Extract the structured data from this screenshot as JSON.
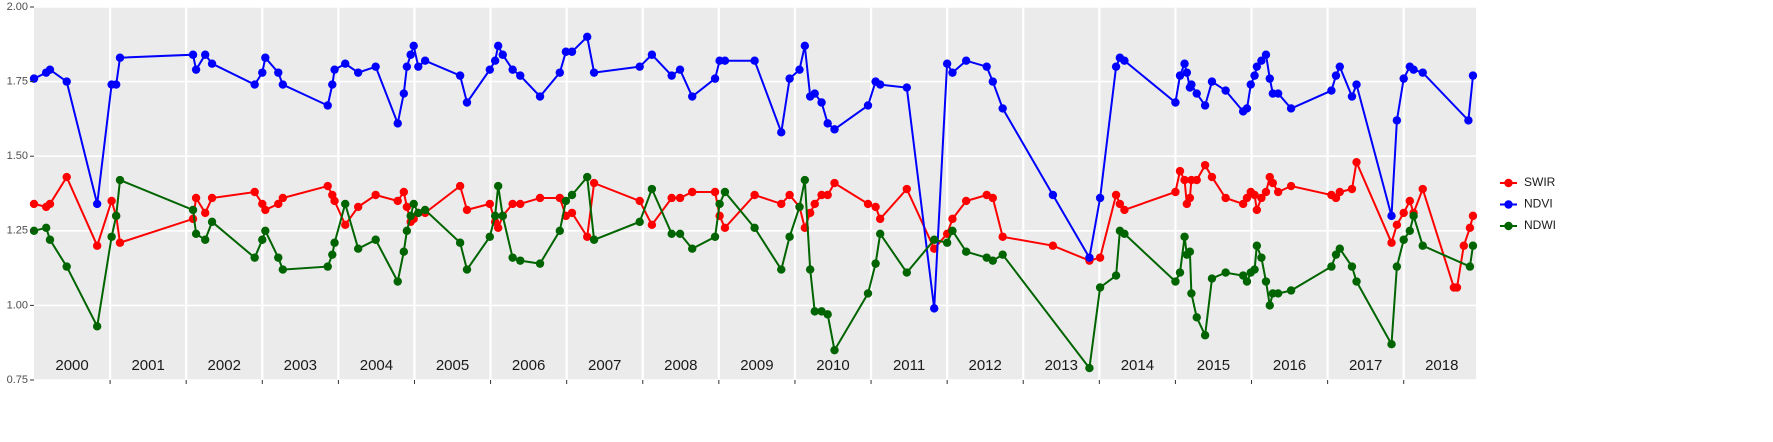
{
  "chart_data": {
    "type": "line",
    "xlim": [
      2000,
      2018.95
    ],
    "ylim": [
      0.75,
      2.0
    ],
    "yticks": [
      0.75,
      {
        "value": 1.0,
        "label": "1.00"
      },
      1.25,
      {
        "value": 1.5,
        "label": "1.50"
      },
      1.75,
      {
        "value": 2.0,
        "label": "2.00"
      }
    ],
    "xticks": [
      {
        "value": 2000.5,
        "label": "2000"
      },
      {
        "value": 2001.5,
        "label": "2001"
      },
      {
        "value": 2002.5,
        "label": "2002"
      },
      {
        "value": 2003.5,
        "label": "2003"
      },
      {
        "value": 2004.5,
        "label": "2004"
      },
      {
        "value": 2005.5,
        "label": "2005"
      },
      {
        "value": 2006.5,
        "label": "2006"
      },
      {
        "value": 2007.5,
        "label": "2007"
      },
      {
        "value": 2008.5,
        "label": "2008"
      },
      {
        "value": 2009.5,
        "label": "2009"
      },
      {
        "value": 2010.5,
        "label": "2010"
      },
      {
        "value": 2011.5,
        "label": "2011"
      },
      {
        "value": 2012.5,
        "label": "2012"
      },
      {
        "value": 2013.5,
        "label": "2013"
      },
      {
        "value": 2014.5,
        "label": "2014"
      },
      {
        "value": 2015.5,
        "label": "2015"
      },
      {
        "value": 2016.5,
        "label": "2016"
      },
      {
        "value": 2017.5,
        "label": "2017"
      },
      {
        "value": 2018.5,
        "label": "2018"
      }
    ],
    "xbreaks": [
      2001,
      2002,
      2003,
      2004,
      2005,
      2006,
      2007,
      2008,
      2009,
      2010,
      2011,
      2012,
      2013,
      2014,
      2015,
      2016,
      2017,
      2018
    ],
    "grid": true,
    "legend": "right",
    "series": [
      {
        "name": "SWIR",
        "color": "#ff0000",
        "x": [
          2000.0,
          2000.16,
          2000.21,
          2000.43,
          2000.83,
          2001.02,
          2001.08,
          2001.13,
          2002.09,
          2002.13,
          2002.25,
          2002.34,
          2002.9,
          2003.0,
          2003.04,
          2003.21,
          2003.27,
          2003.86,
          2003.92,
          2003.95,
          2004.09,
          2004.26,
          2004.49,
          2004.78,
          2004.86,
          2004.9,
          2004.95,
          2004.99,
          2005.05,
          2005.14,
          2005.6,
          2005.69,
          2005.99,
          2006.06,
          2006.1,
          2006.16,
          2006.29,
          2006.39,
          2006.65,
          2006.91,
          2006.99,
          2007.07,
          2007.27,
          2007.36,
          2007.96,
          2008.12,
          2008.38,
          2008.49,
          2008.65,
          2008.95,
          2009.01,
          2009.08,
          2009.47,
          2009.82,
          2009.93,
          2010.06,
          2010.13,
          2010.2,
          2010.26,
          2010.35,
          2010.43,
          2010.52,
          2010.96,
          2011.06,
          2011.12,
          2011.47,
          2011.83,
          2012.0,
          2012.07,
          2012.25,
          2012.52,
          2012.6,
          2012.73,
          2013.39,
          2013.87,
          2014.01,
          2014.22,
          2014.27,
          2014.33,
          2015.0,
          2015.06,
          2015.12,
          2015.15,
          2015.19,
          2015.21,
          2015.28,
          2015.39,
          2015.48,
          2015.66,
          2015.89,
          2015.94,
          2015.99,
          2016.04,
          2016.07,
          2016.13,
          2016.19,
          2016.24,
          2016.28,
          2016.35,
          2016.52,
          2017.05,
          2017.11,
          2017.16,
          2017.32,
          2017.38,
          2017.84,
          2017.91,
          2018.0,
          2018.08,
          2018.13,
          2018.25,
          2018.66,
          2018.7,
          2018.79,
          2018.87,
          2018.91
        ],
        "values": [
          1.34,
          1.33,
          1.34,
          1.43,
          1.2,
          1.35,
          1.3,
          1.21,
          1.29,
          1.36,
          1.31,
          1.36,
          1.38,
          1.34,
          1.32,
          1.34,
          1.36,
          1.4,
          1.37,
          1.35,
          1.27,
          1.33,
          1.37,
          1.35,
          1.38,
          1.33,
          1.28,
          1.29,
          1.31,
          1.31,
          1.4,
          1.32,
          1.34,
          1.28,
          1.26,
          1.3,
          1.34,
          1.34,
          1.36,
          1.36,
          1.3,
          1.31,
          1.23,
          1.41,
          1.35,
          1.27,
          1.36,
          1.36,
          1.38,
          1.38,
          1.3,
          1.26,
          1.37,
          1.34,
          1.37,
          1.33,
          1.26,
          1.31,
          1.34,
          1.37,
          1.37,
          1.41,
          1.34,
          1.33,
          1.29,
          1.39,
          1.19,
          1.24,
          1.29,
          1.35,
          1.37,
          1.36,
          1.23,
          1.2,
          1.15,
          1.16,
          1.37,
          1.34,
          1.32,
          1.38,
          1.45,
          1.42,
          1.34,
          1.36,
          1.42,
          1.42,
          1.47,
          1.43,
          1.36,
          1.34,
          1.36,
          1.38,
          1.37,
          1.32,
          1.36,
          1.38,
          1.43,
          1.41,
          1.38,
          1.4,
          1.37,
          1.36,
          1.38,
          1.39,
          1.48,
          1.21,
          1.27,
          1.31,
          1.35,
          1.31,
          1.39,
          1.06,
          1.06,
          1.2,
          1.26,
          1.3
        ]
      },
      {
        "name": "NDVI",
        "color": "#0000ff",
        "x": [
          2000.0,
          2000.16,
          2000.21,
          2000.43,
          2000.83,
          2001.02,
          2001.08,
          2001.13,
          2002.09,
          2002.13,
          2002.25,
          2002.34,
          2002.9,
          2003.0,
          2003.04,
          2003.21,
          2003.27,
          2003.86,
          2003.92,
          2003.95,
          2004.09,
          2004.26,
          2004.49,
          2004.78,
          2004.86,
          2004.9,
          2004.95,
          2004.99,
          2005.05,
          2005.14,
          2005.6,
          2005.69,
          2005.99,
          2006.06,
          2006.1,
          2006.16,
          2006.29,
          2006.39,
          2006.65,
          2006.91,
          2006.99,
          2007.07,
          2007.27,
          2007.36,
          2007.96,
          2008.12,
          2008.38,
          2008.49,
          2008.65,
          2008.95,
          2009.01,
          2009.08,
          2009.47,
          2009.82,
          2009.93,
          2010.06,
          2010.13,
          2010.2,
          2010.26,
          2010.35,
          2010.43,
          2010.52,
          2010.96,
          2011.06,
          2011.12,
          2011.47,
          2011.83,
          2012.0,
          2012.07,
          2012.25,
          2012.52,
          2012.6,
          2012.73,
          2013.39,
          2013.87,
          2014.01,
          2014.22,
          2014.27,
          2014.33,
          2015.0,
          2015.06,
          2015.12,
          2015.15,
          2015.19,
          2015.21,
          2015.28,
          2015.39,
          2015.48,
          2015.66,
          2015.89,
          2015.94,
          2015.99,
          2016.04,
          2016.07,
          2016.13,
          2016.19,
          2016.24,
          2016.28,
          2016.35,
          2016.52,
          2017.05,
          2017.11,
          2017.16,
          2017.32,
          2017.38,
          2017.84,
          2017.91,
          2018.0,
          2018.08,
          2018.13,
          2018.25,
          2018.85,
          2018.91
        ],
        "values": [
          1.76,
          1.78,
          1.79,
          1.75,
          1.34,
          1.74,
          1.74,
          1.83,
          1.84,
          1.79,
          1.84,
          1.81,
          1.74,
          1.78,
          1.83,
          1.78,
          1.74,
          1.67,
          1.74,
          1.79,
          1.81,
          1.78,
          1.8,
          1.61,
          1.71,
          1.8,
          1.84,
          1.87,
          1.8,
          1.82,
          1.77,
          1.68,
          1.79,
          1.82,
          1.87,
          1.84,
          1.79,
          1.77,
          1.7,
          1.78,
          1.85,
          1.85,
          1.9,
          1.78,
          1.8,
          1.84,
          1.77,
          1.79,
          1.7,
          1.76,
          1.82,
          1.82,
          1.82,
          1.58,
          1.76,
          1.79,
          1.87,
          1.7,
          1.71,
          1.68,
          1.61,
          1.59,
          1.67,
          1.75,
          1.74,
          1.73,
          0.99,
          1.81,
          1.78,
          1.82,
          1.8,
          1.75,
          1.66,
          1.37,
          1.16,
          1.36,
          1.8,
          1.83,
          1.82,
          1.68,
          1.77,
          1.81,
          1.78,
          1.73,
          1.74,
          1.71,
          1.67,
          1.75,
          1.72,
          1.65,
          1.66,
          1.74,
          1.77,
          1.8,
          1.82,
          1.84,
          1.76,
          1.71,
          1.71,
          1.66,
          1.72,
          1.77,
          1.8,
          1.7,
          1.74,
          1.3,
          1.62,
          1.76,
          1.8,
          1.79,
          1.78,
          1.62,
          1.77
        ]
      },
      {
        "name": "NDWI",
        "color": "#006400",
        "x": [
          2000.0,
          2000.16,
          2000.21,
          2000.43,
          2000.83,
          2001.02,
          2001.08,
          2001.13,
          2002.09,
          2002.13,
          2002.25,
          2002.34,
          2002.9,
          2003.0,
          2003.04,
          2003.21,
          2003.27,
          2003.86,
          2003.92,
          2003.95,
          2004.09,
          2004.26,
          2004.49,
          2004.78,
          2004.86,
          2004.9,
          2004.95,
          2004.99,
          2005.05,
          2005.14,
          2005.6,
          2005.69,
          2005.99,
          2006.06,
          2006.1,
          2006.16,
          2006.29,
          2006.39,
          2006.65,
          2006.91,
          2006.99,
          2007.07,
          2007.27,
          2007.36,
          2007.96,
          2008.12,
          2008.38,
          2008.49,
          2008.65,
          2008.95,
          2009.01,
          2009.08,
          2009.47,
          2009.82,
          2009.93,
          2010.06,
          2010.13,
          2010.2,
          2010.26,
          2010.35,
          2010.43,
          2010.52,
          2010.96,
          2011.06,
          2011.12,
          2011.47,
          2011.83,
          2012.0,
          2012.07,
          2012.25,
          2012.52,
          2012.6,
          2012.73,
          2013.87,
          2014.01,
          2014.22,
          2014.27,
          2014.33,
          2015.0,
          2015.06,
          2015.12,
          2015.15,
          2015.19,
          2015.21,
          2015.28,
          2015.39,
          2015.48,
          2015.66,
          2015.89,
          2015.94,
          2015.99,
          2016.04,
          2016.07,
          2016.13,
          2016.19,
          2016.24,
          2016.28,
          2016.35,
          2016.52,
          2017.05,
          2017.11,
          2017.16,
          2017.32,
          2017.38,
          2017.84,
          2017.91,
          2018.0,
          2018.08,
          2018.13,
          2018.25,
          2018.87,
          2018.91
        ],
        "values": [
          1.25,
          1.26,
          1.22,
          1.13,
          0.93,
          1.23,
          1.3,
          1.42,
          1.32,
          1.24,
          1.22,
          1.28,
          1.16,
          1.22,
          1.25,
          1.16,
          1.12,
          1.13,
          1.17,
          1.21,
          1.34,
          1.19,
          1.22,
          1.08,
          1.18,
          1.25,
          1.3,
          1.34,
          1.31,
          1.32,
          1.21,
          1.12,
          1.23,
          1.3,
          1.4,
          1.3,
          1.16,
          1.15,
          1.14,
          1.25,
          1.35,
          1.37,
          1.43,
          1.22,
          1.28,
          1.39,
          1.24,
          1.24,
          1.19,
          1.23,
          1.34,
          1.38,
          1.26,
          1.12,
          1.23,
          1.33,
          1.42,
          1.12,
          0.98,
          0.98,
          0.97,
          0.85,
          1.04,
          1.14,
          1.24,
          1.11,
          1.22,
          1.21,
          1.25,
          1.18,
          1.16,
          1.15,
          1.17,
          0.79,
          1.06,
          1.1,
          1.25,
          1.24,
          1.08,
          1.11,
          1.23,
          1.17,
          1.18,
          1.04,
          0.96,
          0.9,
          1.09,
          1.11,
          1.1,
          1.08,
          1.11,
          1.12,
          1.2,
          1.16,
          1.08,
          1.0,
          1.04,
          1.04,
          1.05,
          1.13,
          1.17,
          1.19,
          1.13,
          1.08,
          0.87,
          1.13,
          1.22,
          1.25,
          1.3,
          1.2,
          1.13,
          1.2
        ]
      }
    ]
  }
}
